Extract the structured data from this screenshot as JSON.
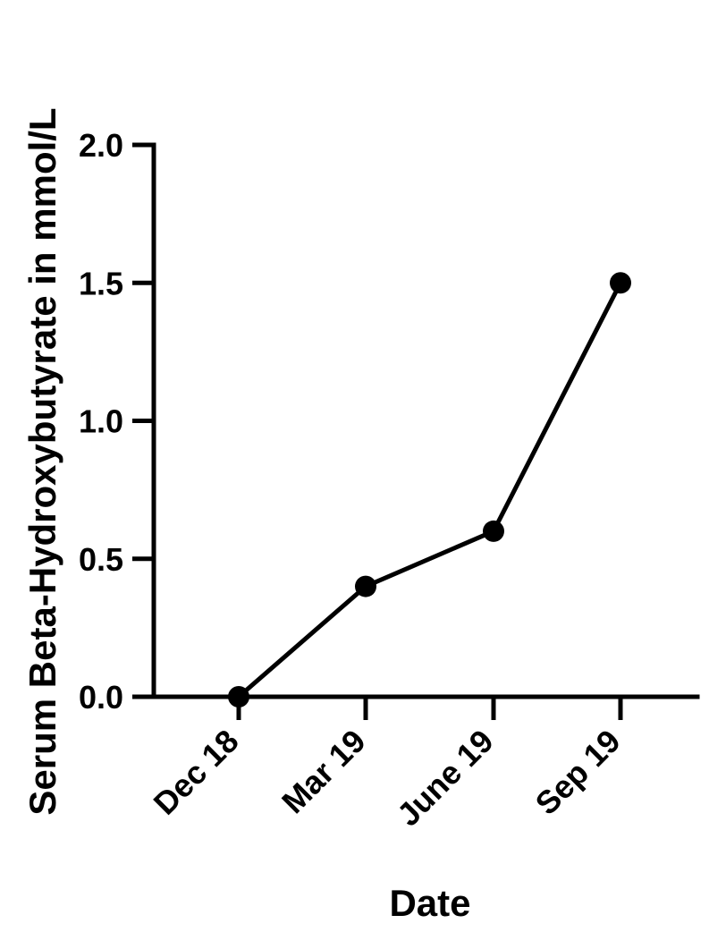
{
  "chart_data": {
    "type": "line",
    "title": "",
    "xlabel": "Date",
    "ylabel": "Serum Beta-Hydroxybutyrate in mmol/L",
    "categories": [
      "Dec 18",
      "Mar 19",
      "June 19",
      "Sep 19"
    ],
    "series": [
      {
        "values": [
          0.0,
          0.4,
          0.6,
          1.5
        ]
      }
    ],
    "ylim": [
      0,
      2.0
    ],
    "yticks": [
      "0.0",
      "0.5",
      "1.0",
      "1.5",
      "2.0"
    ],
    "grid": false,
    "legend": "none",
    "colors": {
      "line": "#000000",
      "marker": "#000000"
    }
  }
}
